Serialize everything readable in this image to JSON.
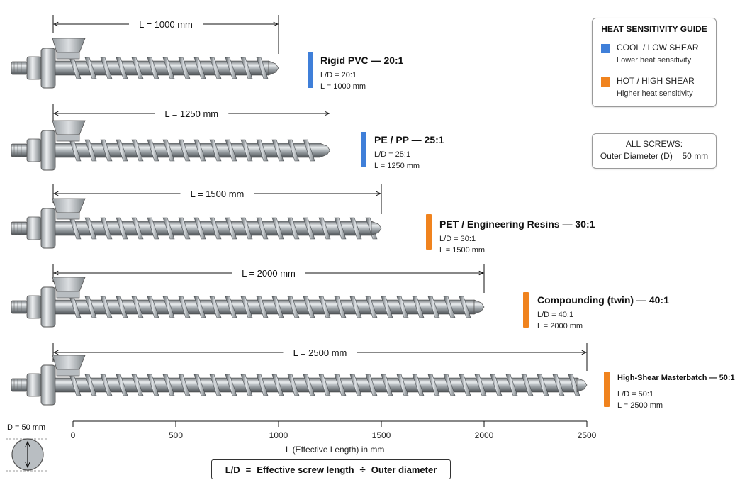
{
  "screws": [
    {
      "name": "Rigid PVC — 20:1",
      "ld": "L/D = 20:1",
      "length_text": "L = 1000 mm",
      "dim_text": "L = 1000 mm",
      "length_mm": 1000,
      "heat": "cool"
    },
    {
      "name": "PE / PP — 25:1",
      "ld": "L/D = 25:1",
      "length_text": "L = 1250 mm",
      "dim_text": "L = 1250 mm",
      "length_mm": 1250,
      "heat": "cool"
    },
    {
      "name": "PET / Engineering Resins — 30:1",
      "ld": "L/D = 30:1",
      "length_text": "L = 1500 mm",
      "dim_text": "L = 1500 mm",
      "length_mm": 1500,
      "heat": "hot"
    },
    {
      "name": "Compounding (twin) — 40:1",
      "ld": "L/D = 40:1",
      "length_text": "L = 2000 mm",
      "dim_text": "L = 2000 mm",
      "length_mm": 2000,
      "heat": "hot"
    },
    {
      "name": "High-Shear Masterbatch — 50:1",
      "ld": "L/D = 50:1",
      "length_text": "L = 2500 mm",
      "dim_text": "L = 2500 mm",
      "length_mm": 2500,
      "heat": "hot"
    }
  ],
  "legend": {
    "title": "HEAT SENSITIVITY GUIDE",
    "cool": {
      "label": "COOL / LOW SHEAR",
      "sub": "Lower heat sensitivity",
      "color": "#3f7fd9"
    },
    "hot": {
      "label": "HOT / HIGH SHEAR",
      "sub": "Higher heat sensitivity",
      "color": "#f0831e"
    }
  },
  "all_screws": {
    "title": "ALL SCREWS:",
    "text": "Outer Diameter (D) = 50 mm"
  },
  "axis": {
    "ticks": [
      {
        "value": 0,
        "label": "0"
      },
      {
        "value": 500,
        "label": "500"
      },
      {
        "value": 1000,
        "label": "1000"
      },
      {
        "value": 1500,
        "label": "1500"
      },
      {
        "value": 2000,
        "label": "2000"
      },
      {
        "value": 2500,
        "label": "2500"
      }
    ],
    "label": "L (Effective Length) in mm",
    "min": 0,
    "max": 2500
  },
  "diameter_label": "D = 50 mm",
  "formula": {
    "left": "L/D",
    "eq": "=",
    "a": "Effective screw length",
    "op": "÷",
    "b": "Outer diameter"
  }
}
